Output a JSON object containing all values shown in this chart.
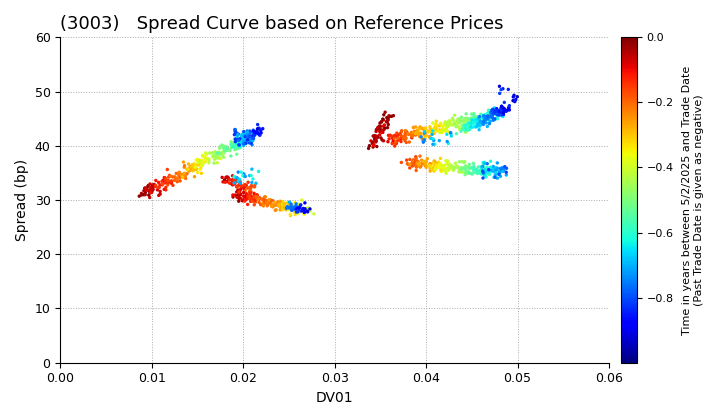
{
  "title": "(3003)   Spread Curve based on Reference Prices",
  "xlabel": "DV01",
  "ylabel": "Spread (bp)",
  "xlim": [
    0.0,
    0.06
  ],
  "ylim": [
    0,
    60
  ],
  "xticks": [
    0.0,
    0.01,
    0.02,
    0.03,
    0.04,
    0.05,
    0.06
  ],
  "yticks": [
    0,
    10,
    20,
    30,
    40,
    50,
    60
  ],
  "colorbar_label_line1": "Time in years between 5/2/2025 and Trade Date",
  "colorbar_label_line2": "(Past Trade Date is given as negative)",
  "clim": [
    -1.0,
    0.0
  ],
  "cbar_ticks": [
    0.0,
    -0.2,
    -0.4,
    -0.6,
    -0.8
  ],
  "cmap": "jet",
  "marker_size": 6,
  "background_color": "#ffffff",
  "grid_color": "#aaaaaa",
  "title_fontsize": 13,
  "label_fontsize": 10,
  "tick_fontsize": 9,
  "cbar_fontsize": 8
}
